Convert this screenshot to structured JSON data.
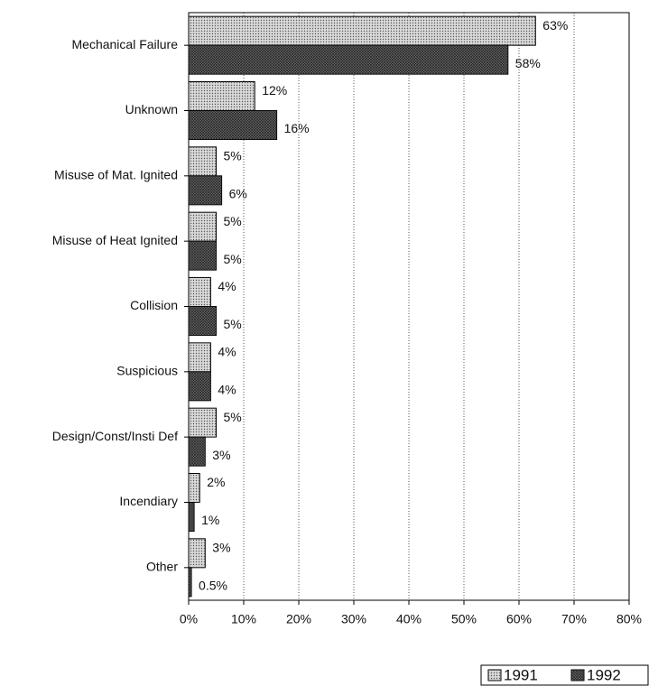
{
  "chart_data": {
    "type": "bar",
    "orientation": "horizontal",
    "categories": [
      "Mechanical Failure",
      "Unknown",
      "Misuse of Mat. Ignited",
      "Misuse of Heat Ignited",
      "Collision",
      "Suspicious",
      "Design/Const/Insti Def",
      "Incendiary",
      "Other"
    ],
    "series": [
      {
        "name": "1991",
        "color": "#d9d9d9",
        "values": [
          63,
          12,
          5,
          5,
          4,
          4,
          5,
          2,
          3
        ],
        "value_labels": [
          "63%",
          "12%",
          "5%",
          "5%",
          "4%",
          "4%",
          "5%",
          "2%",
          "3%"
        ]
      },
      {
        "name": "1992",
        "color": "#6e6e6e",
        "values": [
          58,
          16,
          6,
          5,
          5,
          4,
          3,
          1,
          0.5
        ],
        "value_labels": [
          "58%",
          "16%",
          "6%",
          "5%",
          "5%",
          "4%",
          "3%",
          "1%",
          "0.5%"
        ]
      }
    ],
    "xlim": [
      0,
      80
    ],
    "xticks": [
      {
        "value": 0,
        "label": "0%"
      },
      {
        "value": 10,
        "label": "10%"
      },
      {
        "value": 20,
        "label": "20%"
      },
      {
        "value": 30,
        "label": "30%"
      },
      {
        "value": 40,
        "label": "40%"
      },
      {
        "value": 50,
        "label": "50%"
      },
      {
        "value": 60,
        "label": "60%"
      },
      {
        "value": 70,
        "label": "70%"
      },
      {
        "value": 80,
        "label": "80%"
      }
    ],
    "grid": true,
    "legend": "bottom-right"
  }
}
